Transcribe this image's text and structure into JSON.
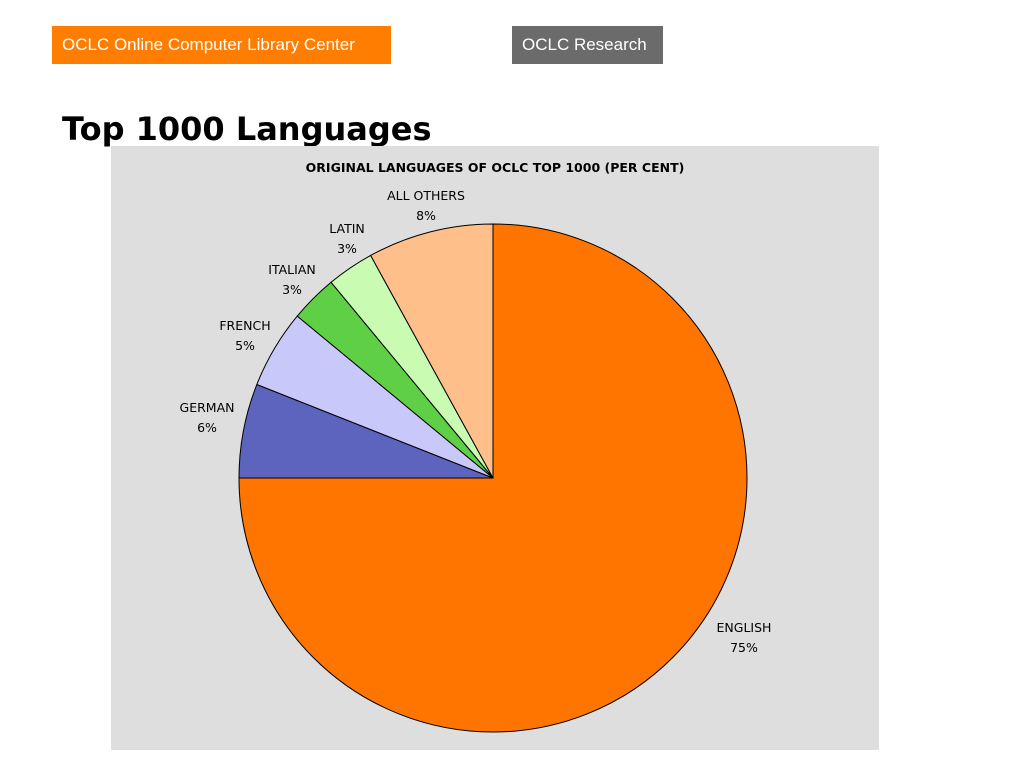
{
  "nav": {
    "oclc_label": "OCLC Online Computer Library Center",
    "research_label": "OCLC Research",
    "oclc_color": "#ff7d00",
    "research_color": "#6b6b6b"
  },
  "page": {
    "title": "Top 1000 Languages"
  },
  "chart_data": {
    "type": "pie",
    "title": "ORIGINAL LANGUAGES OF OCLC TOP 1000 (PER CENT)",
    "background": "#dedede",
    "start": "12 o'clock, clockwise",
    "slices": [
      {
        "label": "ENGLISH",
        "value": 75,
        "value_label": "75%",
        "color": "#ff7500"
      },
      {
        "label": "GERMAN",
        "value": 6,
        "value_label": "6%",
        "color": "#5d64be"
      },
      {
        "label": "FRENCH",
        "value": 5,
        "value_label": "5%",
        "color": "#c8c8fa"
      },
      {
        "label": "ITALIAN",
        "value": 3,
        "value_label": "3%",
        "color": "#5fcf45"
      },
      {
        "label": "LATIN",
        "value": 3,
        "value_label": "3%",
        "color": "#c9fcb2"
      },
      {
        "label": "ALL OTHERS",
        "value": 8,
        "value_label": "8%",
        "color": "#ffbf8b"
      }
    ]
  }
}
